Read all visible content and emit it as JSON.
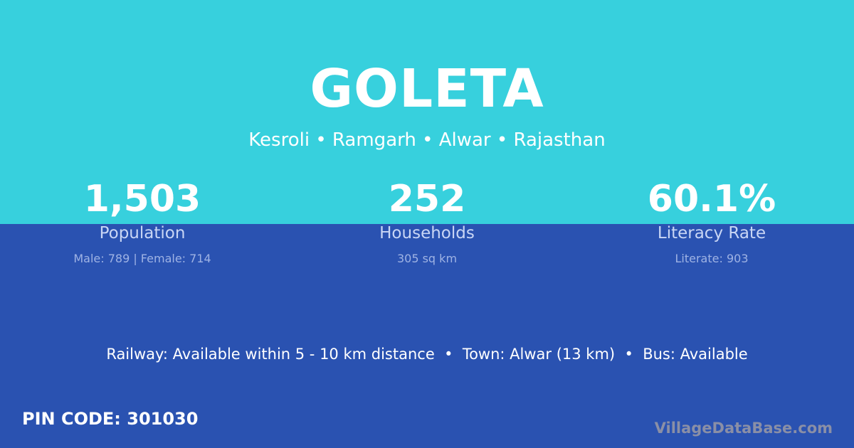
{
  "header": {
    "title": "GOLETA",
    "location": "Kesroli • Ramgarh • Alwar • Rajasthan"
  },
  "stats": [
    {
      "value": "1,503",
      "label": "Population",
      "detail": "Male: 789 | Female: 714"
    },
    {
      "value": "252",
      "label": "Households",
      "detail": "305 sq km"
    },
    {
      "value": "60.1%",
      "label": "Literacy Rate",
      "detail": "Literate: 903"
    }
  ],
  "info": "Railway: Available within 5 - 10 km distance  •  Town: Alwar (13 km)  •  Bus: Available",
  "pin_code": "PIN CODE: 301030",
  "brand": "VillageDataBase.com",
  "colors": {
    "top": "#37D0DD",
    "bottom": "#2A52B1"
  }
}
